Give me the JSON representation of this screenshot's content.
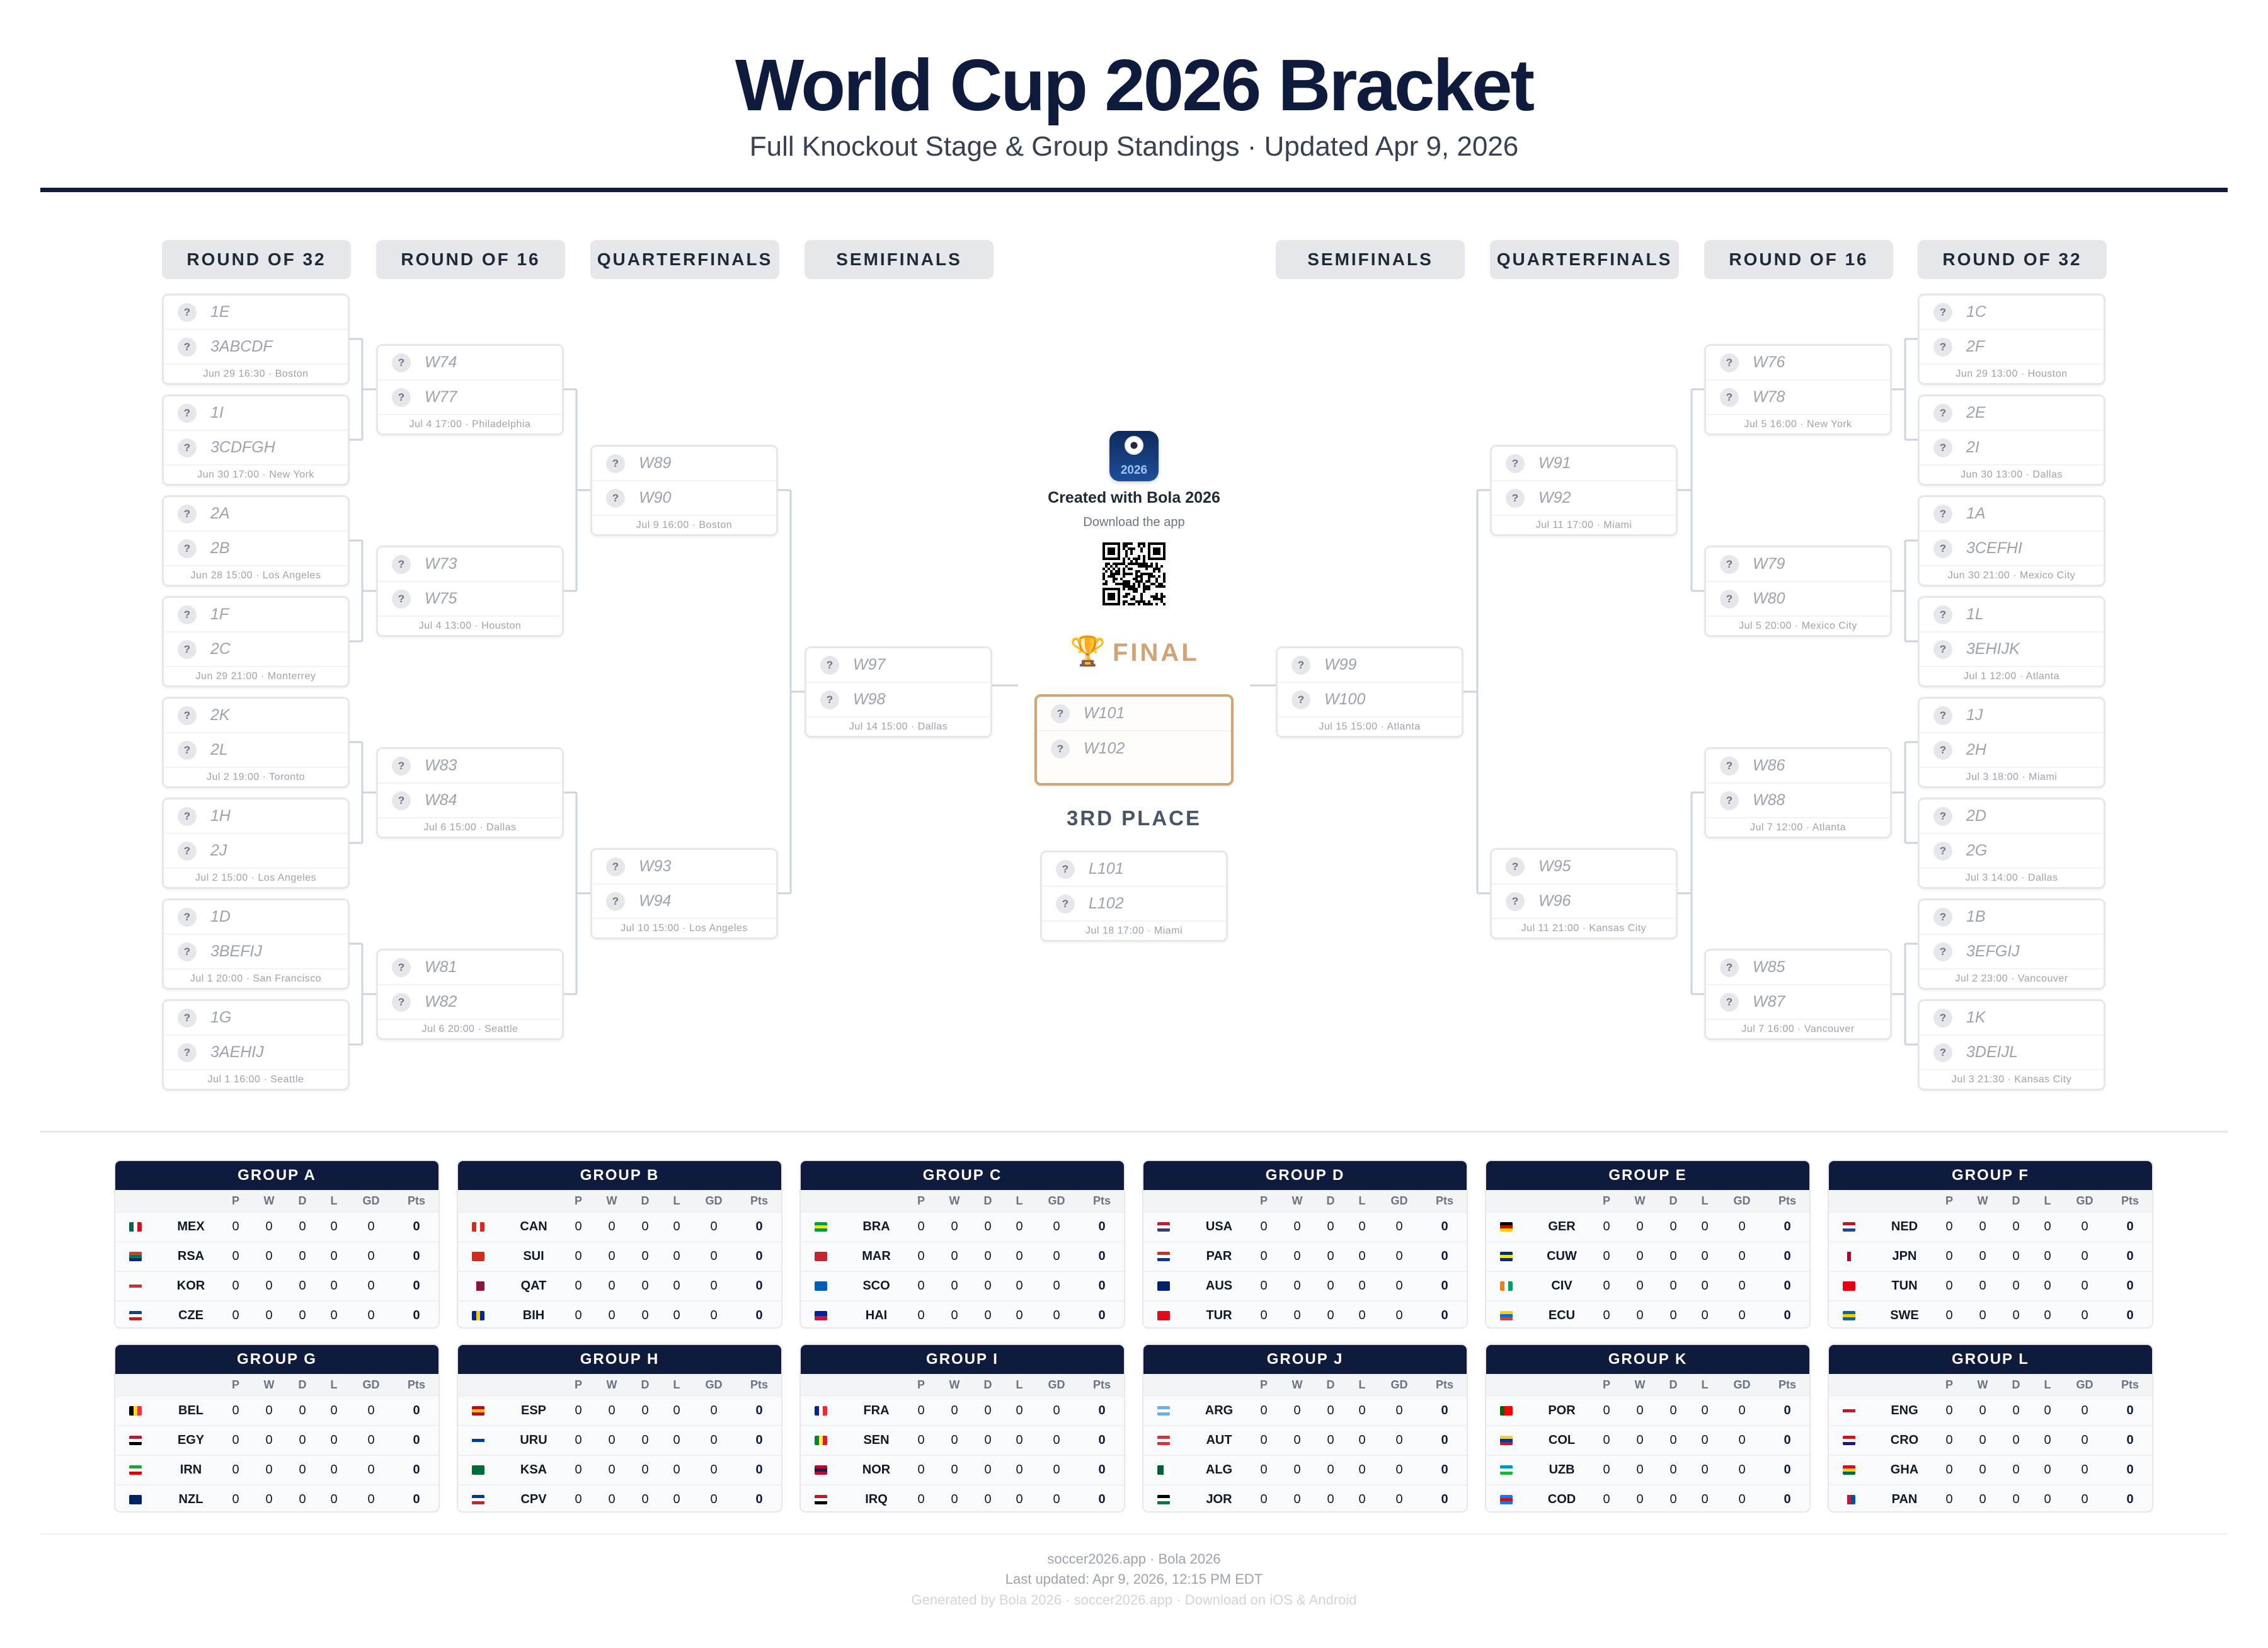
{
  "header": {
    "title": "World Cup 2026 Bracket",
    "subtitle": "Full Knockout Stage & Group Standings · Updated Apr 9, 2026"
  },
  "rounds_left": [
    "ROUND OF 32",
    "ROUND OF 16",
    "QUARTERFINALS",
    "SEMIFINALS"
  ],
  "rounds_right": [
    "SEMIFINALS",
    "QUARTERFINALS",
    "ROUND OF 16",
    "ROUND OF 32"
  ],
  "placeholder_icon": "?",
  "left": {
    "r32": [
      {
        "teams": [
          "1E",
          "3ABCDF"
        ],
        "info": "Jun 29 16:30 · Boston"
      },
      {
        "teams": [
          "1I",
          "3CDFGH"
        ],
        "info": "Jun 30 17:00 · New York"
      },
      {
        "teams": [
          "2A",
          "2B"
        ],
        "info": "Jun 28 15:00 · Los Angeles"
      },
      {
        "teams": [
          "1F",
          "2C"
        ],
        "info": "Jun 29 21:00 · Monterrey"
      },
      {
        "teams": [
          "2K",
          "2L"
        ],
        "info": "Jul 2 19:00 · Toronto"
      },
      {
        "teams": [
          "1H",
          "2J"
        ],
        "info": "Jul 2 15:00 · Los Angeles"
      },
      {
        "teams": [
          "1D",
          "3BEFIJ"
        ],
        "info": "Jul 1 20:00 · San Francisco"
      },
      {
        "teams": [
          "1G",
          "3AEHIJ"
        ],
        "info": "Jul 1 16:00 · Seattle"
      }
    ],
    "r16": [
      {
        "teams": [
          "W74",
          "W77"
        ],
        "info": "Jul 4 17:00 · Philadelphia"
      },
      {
        "teams": [
          "W73",
          "W75"
        ],
        "info": "Jul 4 13:00 · Houston"
      },
      {
        "teams": [
          "W83",
          "W84"
        ],
        "info": "Jul 6 15:00 · Dallas"
      },
      {
        "teams": [
          "W81",
          "W82"
        ],
        "info": "Jul 6 20:00 · Seattle"
      }
    ],
    "qf": [
      {
        "teams": [
          "W89",
          "W90"
        ],
        "info": "Jul 9 16:00 · Boston"
      },
      {
        "teams": [
          "W93",
          "W94"
        ],
        "info": "Jul 10 15:00 · Los Angeles"
      }
    ],
    "sf": [
      {
        "teams": [
          "W97",
          "W98"
        ],
        "info": "Jul 14 15:00 · Dallas"
      }
    ]
  },
  "right": {
    "r32": [
      {
        "teams": [
          "1C",
          "2F"
        ],
        "info": "Jun 29 13:00 · Houston"
      },
      {
        "teams": [
          "2E",
          "2I"
        ],
        "info": "Jun 30 13:00 · Dallas"
      },
      {
        "teams": [
          "1A",
          "3CEFHI"
        ],
        "info": "Jun 30 21:00 · Mexico City"
      },
      {
        "teams": [
          "1L",
          "3EHIJK"
        ],
        "info": "Jul 1 12:00 · Atlanta"
      },
      {
        "teams": [
          "1J",
          "2H"
        ],
        "info": "Jul 3 18:00 · Miami"
      },
      {
        "teams": [
          "2D",
          "2G"
        ],
        "info": "Jul 3 14:00 · Dallas"
      },
      {
        "teams": [
          "1B",
          "3EFGIJ"
        ],
        "info": "Jul 2 23:00 · Vancouver"
      },
      {
        "teams": [
          "1K",
          "3DEIJL"
        ],
        "info": "Jul 3 21:30 · Kansas City"
      }
    ],
    "r16": [
      {
        "teams": [
          "W76",
          "W78"
        ],
        "info": "Jul 5 16:00 · New York"
      },
      {
        "teams": [
          "W79",
          "W80"
        ],
        "info": "Jul 5 20:00 · Mexico City"
      },
      {
        "teams": [
          "W86",
          "W88"
        ],
        "info": "Jul 7 12:00 · Atlanta"
      },
      {
        "teams": [
          "W85",
          "W87"
        ],
        "info": "Jul 7 16:00 · Vancouver"
      }
    ],
    "qf": [
      {
        "teams": [
          "W91",
          "W92"
        ],
        "info": "Jul 11 17:00 · Miami"
      },
      {
        "teams": [
          "W95",
          "W96"
        ],
        "info": "Jul 11 21:00 · Kansas City"
      }
    ],
    "sf": [
      {
        "teams": [
          "W99",
          "W100"
        ],
        "info": "Jul 15 15:00 · Atlanta"
      }
    ]
  },
  "center": {
    "app_icon_text": "2026",
    "created": "Created with Bola 2026",
    "download": "Download the app",
    "final_label": "FINAL",
    "trophy": "🏆",
    "final_teams": [
      "W101",
      "W102"
    ],
    "third_label": "3RD PLACE",
    "third": {
      "teams": [
        "L101",
        "L102"
      ],
      "info": "Jul 18 17:00 · Miami"
    }
  },
  "colors": {
    "navy": "#0f1b3d",
    "gold": "#d4a373"
  },
  "group_columns": [
    "P",
    "W",
    "D",
    "L",
    "GD",
    "Pts"
  ],
  "groups": [
    {
      "name": "GROUP A",
      "teams": [
        {
          "code": "MEX",
          "flag": "v:#006847,#fff,#ce1126"
        },
        {
          "code": "RSA",
          "flag": "h:#de3831,#007a4d,#002395"
        },
        {
          "code": "KOR",
          "flag": "h:#fff,#cd2e3a,#fff"
        },
        {
          "code": "CZE",
          "flag": "h:#11457e,#fff,#d7141a"
        }
      ]
    },
    {
      "name": "GROUP B",
      "teams": [
        {
          "code": "CAN",
          "flag": "v:#d52b1e,#fff,#d52b1e"
        },
        {
          "code": "SUI",
          "flag": "h:#d52b1e"
        },
        {
          "code": "QAT",
          "flag": "v:#fff,#8a1538,#8a1538"
        },
        {
          "code": "BIH",
          "flag": "v:#002395,#fecb00,#002395"
        }
      ]
    },
    {
      "name": "GROUP C",
      "teams": [
        {
          "code": "BRA",
          "flag": "h:#009c3b,#ffdf00,#009c3b"
        },
        {
          "code": "MAR",
          "flag": "h:#c1272d"
        },
        {
          "code": "SCO",
          "flag": "h:#005eb8"
        },
        {
          "code": "HAI",
          "flag": "h:#00209f,#d21034"
        }
      ]
    },
    {
      "name": "GROUP D",
      "teams": [
        {
          "code": "USA",
          "flag": "h:#b22234,#fff,#3c3b6e"
        },
        {
          "code": "PAR",
          "flag": "h:#d52b1e,#fff,#0038a8"
        },
        {
          "code": "AUS",
          "flag": "h:#012169"
        },
        {
          "code": "TUR",
          "flag": "h:#e30a17"
        }
      ]
    },
    {
      "name": "GROUP E",
      "teams": [
        {
          "code": "GER",
          "flag": "h:#000,#dd0000,#ffce00"
        },
        {
          "code": "CUW",
          "flag": "h:#002b7f,#f9e814,#002b7f"
        },
        {
          "code": "CIV",
          "flag": "v:#f77f00,#fff,#009e60"
        },
        {
          "code": "ECU",
          "flag": "h:#ffd100,#0072ce,#ef3340"
        }
      ]
    },
    {
      "name": "GROUP F",
      "teams": [
        {
          "code": "NED",
          "flag": "h:#ae1c28,#fff,#21468b"
        },
        {
          "code": "JPN",
          "flag": "v:#fff,#bc002d,#fff"
        },
        {
          "code": "TUN",
          "flag": "h:#e70013"
        },
        {
          "code": "SWE",
          "flag": "h:#006aa7,#fecc00,#006aa7"
        }
      ]
    },
    {
      "name": "GROUP G",
      "teams": [
        {
          "code": "BEL",
          "flag": "v:#000,#fdda24,#ef3340"
        },
        {
          "code": "EGY",
          "flag": "h:#ce1126,#fff,#000"
        },
        {
          "code": "IRN",
          "flag": "h:#239f40,#fff,#da0000"
        },
        {
          "code": "NZL",
          "flag": "h:#012169"
        }
      ]
    },
    {
      "name": "GROUP H",
      "teams": [
        {
          "code": "ESP",
          "flag": "h:#aa151b,#f1bf00,#aa151b"
        },
        {
          "code": "URU",
          "flag": "h:#fff,#0038a8,#fff"
        },
        {
          "code": "KSA",
          "flag": "h:#006c35"
        },
        {
          "code": "CPV",
          "flag": "h:#003893,#fff,#cf2027"
        }
      ]
    },
    {
      "name": "GROUP I",
      "teams": [
        {
          "code": "FRA",
          "flag": "v:#002395,#fff,#ed2939"
        },
        {
          "code": "SEN",
          "flag": "v:#00853f,#fdef42,#e31b23"
        },
        {
          "code": "NOR",
          "flag": "h:#ba0c2f,#00205b,#ba0c2f"
        },
        {
          "code": "IRQ",
          "flag": "h:#ce1126,#fff,#000"
        }
      ]
    },
    {
      "name": "GROUP J",
      "teams": [
        {
          "code": "ARG",
          "flag": "h:#74acdf,#fff,#74acdf"
        },
        {
          "code": "AUT",
          "flag": "h:#ed2939,#fff,#ed2939"
        },
        {
          "code": "ALG",
          "flag": "v:#006233,#fff"
        },
        {
          "code": "JOR",
          "flag": "h:#000,#fff,#007a3d"
        }
      ]
    },
    {
      "name": "GROUP K",
      "teams": [
        {
          "code": "POR",
          "flag": "v:#006600,#ff0000,#ff0000"
        },
        {
          "code": "COL",
          "flag": "h:#fcd116,#003893,#ce1126"
        },
        {
          "code": "UZB",
          "flag": "h:#0099b5,#fff,#1eb53a"
        },
        {
          "code": "COD",
          "flag": "h:#007fff,#ce1021,#007fff"
        }
      ]
    },
    {
      "name": "GROUP L",
      "teams": [
        {
          "code": "ENG",
          "flag": "h:#fff,#ce1124,#fff"
        },
        {
          "code": "CRO",
          "flag": "h:#ff0000,#fff,#171796"
        },
        {
          "code": "GHA",
          "flag": "h:#ce1126,#fcd116,#006b3f"
        },
        {
          "code": "PAN",
          "flag": "v:#fff,#d21034,#005293"
        }
      ]
    }
  ],
  "group_stats": [
    "0",
    "0",
    "0",
    "0",
    "0",
    "0"
  ],
  "footer": {
    "line1": "soccer2026.app · Bola 2026",
    "line2": "Last updated: Apr 9, 2026, 12:15 PM EDT",
    "line3": "Generated by Bola 2026 · soccer2026.app · Download on iOS & Android"
  }
}
